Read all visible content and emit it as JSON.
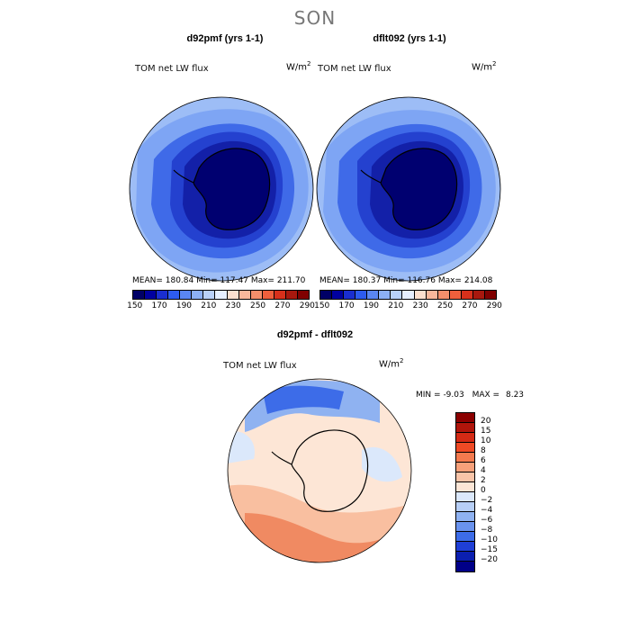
{
  "season": "SON",
  "panels": [
    {
      "title": "d92pmf (yrs 1-1)",
      "variable": "TOM net LW flux",
      "units_base": "W/m",
      "units_exp": "2",
      "stats": "MEAN= 180.84   Min= 117.47   Max= 211.70"
    },
    {
      "title": "dflt092 (yrs 1-1)",
      "variable": "TOM net LW flux",
      "units_base": "W/m",
      "units_exp": "2",
      "stats": "MEAN= 180.37   Min= 116.76   Max= 214.08"
    }
  ],
  "colorbar_top": {
    "colors": [
      "#000066",
      "#0000a0",
      "#1a2ed0",
      "#2d5bef",
      "#5a86f2",
      "#8cb0f5",
      "#b9d1f8",
      "#e6efff",
      "#fde0cf",
      "#f9b79b",
      "#f48f6b",
      "#ef5f3c",
      "#d8301b",
      "#a8180e",
      "#800000"
    ],
    "ticks": [
      "150",
      "170",
      "190",
      "210",
      "230",
      "250",
      "270",
      "290"
    ]
  },
  "diff": {
    "title": "d92pmf - dflt092",
    "variable": "TOM net LW flux",
    "units_base": "W/m",
    "units_exp": "2",
    "min_label": "MIN =",
    "min_value": "-9.03",
    "max_label": "MAX =",
    "max_value": "8.23"
  },
  "colorbar_diff": {
    "colors": [
      "#8b0000",
      "#b0150b",
      "#d42a15",
      "#ef4a25",
      "#f47a4e",
      "#f7a07a",
      "#f9c4a8",
      "#fde6d6",
      "#dbe8fb",
      "#b7cff6",
      "#8fb2f1",
      "#6a93ee",
      "#3d6ce8",
      "#1f3fd6",
      "#0b1fb0",
      "#000088"
    ],
    "labels": [
      "20",
      "15",
      "10",
      "8",
      "6",
      "4",
      "2",
      "0",
      "−2",
      "−4",
      "−6",
      "−8",
      "−10",
      "−15",
      "−20"
    ]
  },
  "map_colors": {
    "ocean_outer": "#9dbdf6",
    "ocean_mid": "#7ea5f4",
    "ocean_inner": "#3f6ae8",
    "shelf": "#2441cf",
    "ice_edge": "#1320a8",
    "interior": "#000070",
    "diff_pos_light": "#fde6d6",
    "diff_pos": "#f9bfa0",
    "diff_pos_strong": "#f08a62",
    "diff_neg_light": "#dbe8fb",
    "diff_neg": "#8fb2f1",
    "diff_neg_strong": "#3d6ce8"
  }
}
